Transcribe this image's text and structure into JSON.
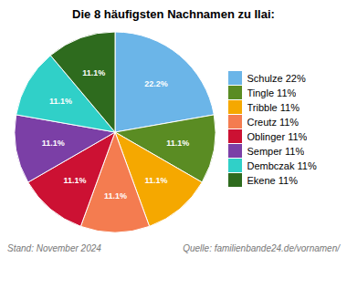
{
  "chart_data": {
    "type": "pie",
    "title": "Die 8 häufigsten Nachnamen zu Ilai:",
    "categories": [
      "Schulze 22%",
      "Tingle 11%",
      "Tribble 11%",
      "Creutz 11%",
      "Oblinger 11%",
      "Semper 11%",
      "Dembczak 11%",
      "Ekene 11%"
    ],
    "values": [
      22.2,
      11.1,
      11.1,
      11.1,
      11.1,
      11.1,
      11.1,
      11.1
    ],
    "value_labels": [
      "22.2%",
      "11.1%",
      "11.1%",
      "11.1%",
      "11.1%",
      "11.1%",
      "11.1%",
      "11.1%"
    ],
    "data_labels": true,
    "colors": [
      "#6bb5e8",
      "#5a8c23",
      "#f5a800",
      "#f47c50",
      "#cc1133",
      "#7b3fa6",
      "#30d0c8",
      "#2e6b1e"
    ],
    "legend": "right",
    "annotations": [
      "Stand: November 2024",
      "Quelle: familienbande24.de/vornamen/"
    ]
  }
}
